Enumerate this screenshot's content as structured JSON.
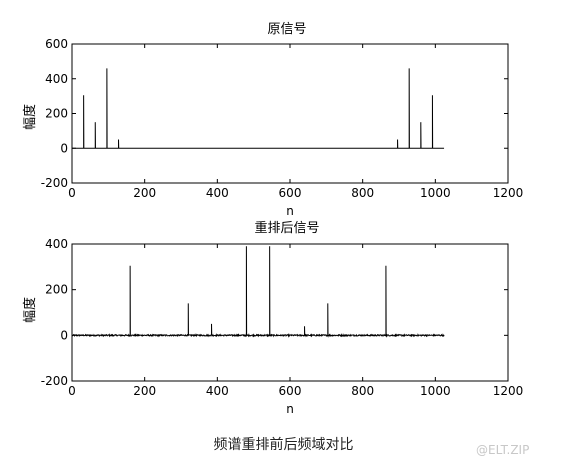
{
  "chart_data": [
    {
      "type": "line",
      "title": "原信号",
      "xlabel": "n",
      "ylabel": "幅度",
      "xlim": [
        0,
        1200
      ],
      "ylim": [
        -200,
        600
      ],
      "xticks": [
        "0",
        "200",
        "400",
        "600",
        "800",
        "1000",
        "1200"
      ],
      "yticks": [
        "-200",
        "0",
        "200",
        "400",
        "600"
      ],
      "grid": false,
      "baseline": {
        "x_start": 1,
        "x_end": 1024,
        "y": 0
      },
      "peaks": [
        {
          "x": 32,
          "y": 305
        },
        {
          "x": 64,
          "y": 150
        },
        {
          "x": 96,
          "y": 460
        },
        {
          "x": 128,
          "y": 50
        },
        {
          "x": 896,
          "y": 50
        },
        {
          "x": 928,
          "y": 460
        },
        {
          "x": 960,
          "y": 150
        },
        {
          "x": 992,
          "y": 305
        }
      ]
    },
    {
      "type": "line",
      "title": "重排后信号",
      "xlabel": "n",
      "ylabel": "幅度",
      "xlim": [
        0,
        1200
      ],
      "ylim": [
        -200,
        400
      ],
      "xticks": [
        "0",
        "200",
        "400",
        "600",
        "800",
        "1000",
        "1200"
      ],
      "yticks": [
        "-200",
        "0",
        "200",
        "400"
      ],
      "grid": false,
      "baseline": {
        "x_start": 1,
        "x_end": 1024,
        "y": 0
      },
      "noise_amplitude": 3,
      "peaks": [
        {
          "x": 160,
          "y": 305
        },
        {
          "x": 320,
          "y": 140
        },
        {
          "x": 384,
          "y": 50
        },
        {
          "x": 480,
          "y": 390
        },
        {
          "x": 544,
          "y": 390
        },
        {
          "x": 640,
          "y": 40
        },
        {
          "x": 704,
          "y": 140
        },
        {
          "x": 864,
          "y": 305
        }
      ]
    }
  ],
  "caption": "频谱重排前后频域对比",
  "watermark": "@ELT.ZIP"
}
